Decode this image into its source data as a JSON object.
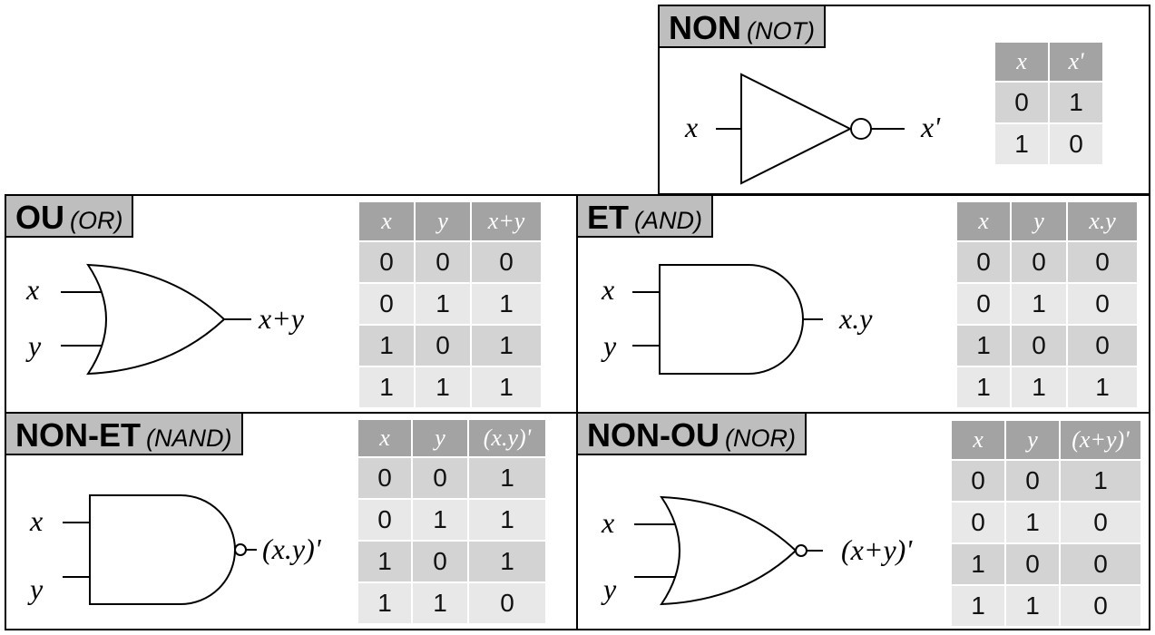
{
  "gates": {
    "not": {
      "name": "NON",
      "en": "(NOT)",
      "input_x": "x",
      "output": "x'",
      "headers": [
        "x",
        "x'"
      ],
      "rows": [
        [
          "0",
          "1"
        ],
        [
          "1",
          "0"
        ]
      ]
    },
    "or": {
      "name": "OU",
      "en": "(OR)",
      "input_x": "x",
      "input_y": "y",
      "output": "x+y",
      "headers": [
        "x",
        "y",
        "x+y"
      ],
      "rows": [
        [
          "0",
          "0",
          "0"
        ],
        [
          "0",
          "1",
          "1"
        ],
        [
          "1",
          "0",
          "1"
        ],
        [
          "1",
          "1",
          "1"
        ]
      ]
    },
    "and": {
      "name": "ET",
      "en": "(AND)",
      "input_x": "x",
      "input_y": "y",
      "output": "x.y",
      "headers": [
        "x",
        "y",
        "x.y"
      ],
      "rows": [
        [
          "0",
          "0",
          "0"
        ],
        [
          "0",
          "1",
          "0"
        ],
        [
          "1",
          "0",
          "0"
        ],
        [
          "1",
          "1",
          "1"
        ]
      ]
    },
    "nand": {
      "name": "NON-ET",
      "en": "(NAND)",
      "input_x": "x",
      "input_y": "y",
      "output": "(x.y)'",
      "headers": [
        "x",
        "y",
        "(x.y)'"
      ],
      "rows": [
        [
          "0",
          "0",
          "1"
        ],
        [
          "0",
          "1",
          "1"
        ],
        [
          "1",
          "0",
          "1"
        ],
        [
          "1",
          "1",
          "0"
        ]
      ]
    },
    "nor": {
      "name": "NON-OU",
      "en": "(NOR)",
      "input_x": "x",
      "input_y": "y",
      "output": "(x+y)'",
      "headers": [
        "x",
        "y",
        "(x+y)'"
      ],
      "rows": [
        [
          "0",
          "0",
          "1"
        ],
        [
          "0",
          "1",
          "0"
        ],
        [
          "1",
          "0",
          "0"
        ],
        [
          "1",
          "1",
          "0"
        ]
      ]
    }
  },
  "colors": {
    "title_bg": "#bebebe",
    "table_header": "#a3a3a3",
    "row_dark": "#d3d3d3",
    "row_light": "#e8e8e8"
  }
}
